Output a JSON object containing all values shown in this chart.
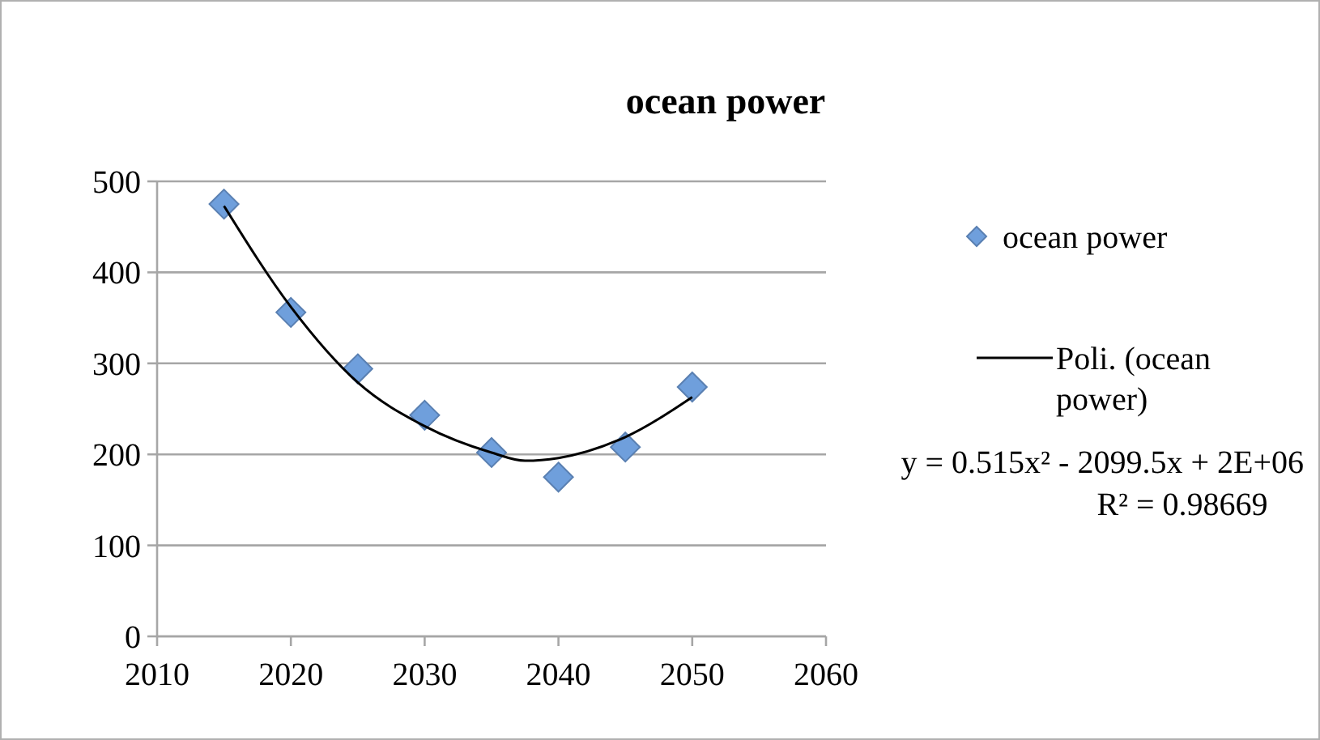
{
  "chart_data": {
    "type": "scatter",
    "title": "ocean power",
    "xlim": [
      2010,
      2060
    ],
    "xticks": [
      2010,
      2020,
      2030,
      2040,
      2050,
      2060
    ],
    "ylim": [
      0,
      500
    ],
    "yticks": [
      0,
      100,
      200,
      300,
      400,
      500
    ],
    "grid": "y",
    "legend": "right",
    "marker": "diamond",
    "x": [
      2015,
      2020,
      2025,
      2030,
      2035,
      2040,
      2045,
      2050
    ],
    "series": [
      {
        "name": "ocean power",
        "color": "#6f9fdc",
        "values": [
          475,
          356,
          294,
          243,
          202,
          175,
          208,
          274
        ]
      },
      {
        "name": "Poli. (ocean power)",
        "type": "line",
        "color": "#000000",
        "line_style": "solid",
        "marker": "none",
        "x": [
          2015,
          2020,
          2025,
          2030,
          2035,
          2037.5,
          2040,
          2045,
          2050
        ],
        "values": [
          473,
          362,
          279,
          231,
          202,
          193,
          196,
          219,
          263
        ]
      }
    ],
    "annotations": [
      "y = 0.515x² - 2099.5x + 2E+06",
      "R² = 0.98669"
    ]
  }
}
